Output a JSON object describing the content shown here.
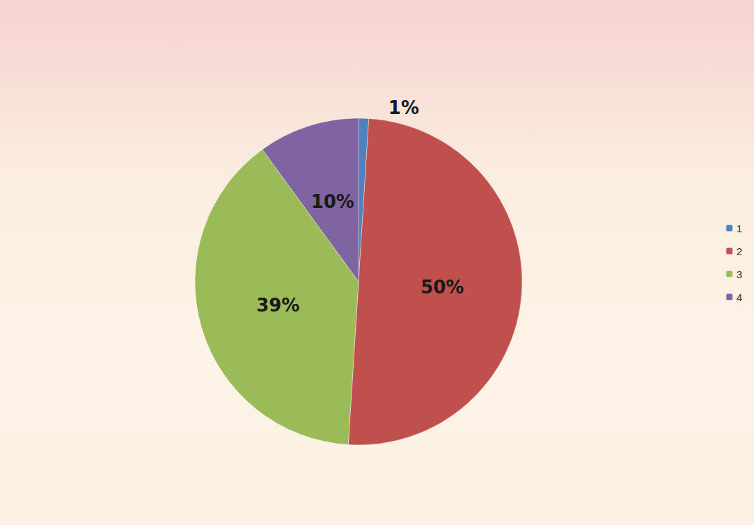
{
  "chart_data": {
    "type": "pie",
    "categories": [
      "1",
      "2",
      "3",
      "4"
    ],
    "values": [
      1,
      50,
      39,
      10
    ],
    "value_labels": [
      "1%",
      "50%",
      "39%",
      "10%"
    ],
    "colors": [
      "#4f81bd",
      "#c0504d",
      "#9bbb59",
      "#8064a2"
    ],
    "legend": "right",
    "data_labels": true
  }
}
